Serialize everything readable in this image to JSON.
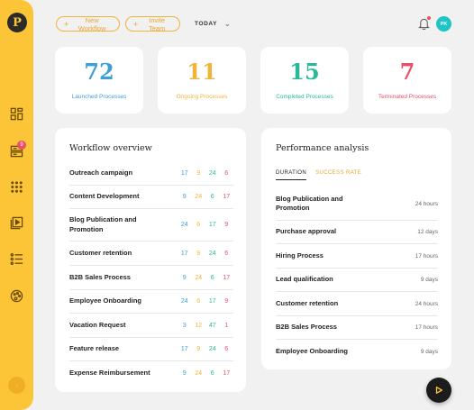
{
  "app": {
    "logo_letter": "P"
  },
  "sidebar": {
    "items": [
      {
        "name": "dashboard-icon"
      },
      {
        "name": "workflows-icon",
        "badge": "9"
      },
      {
        "name": "grid-apps-icon"
      },
      {
        "name": "media-icon"
      },
      {
        "name": "list-icon"
      },
      {
        "name": "palette-icon"
      }
    ],
    "collapse_icon": "chevron-right-icon"
  },
  "topbar": {
    "new_workflow": "New Workflow",
    "invite_team": "Invite Team",
    "date_filter": "TODAY",
    "avatar_initials": "PK"
  },
  "stats": [
    {
      "value": "72",
      "label": "Launched Processes",
      "color": "#3d9fd8"
    },
    {
      "value": "11",
      "label": "Ongoing Processes",
      "color": "#f0b43a"
    },
    {
      "value": "15",
      "label": "Completed Processes",
      "color": "#29b898"
    },
    {
      "value": "7",
      "label": "Terminated Processes",
      "color": "#e8506a"
    }
  ],
  "workflow_overview": {
    "title": "Workflow overview",
    "rows": [
      {
        "name": "Outreach campaign",
        "values": [
          "17",
          "9",
          "24",
          "6"
        ]
      },
      {
        "name": "Content Development",
        "values": [
          "9",
          "24",
          "6",
          "17"
        ]
      },
      {
        "name": "Blog Publication and Promotion",
        "values": [
          "24",
          "6",
          "17",
          "9"
        ]
      },
      {
        "name": "Customer retention",
        "values": [
          "17",
          "9",
          "24",
          "6"
        ]
      },
      {
        "name": "B2B Sales Process",
        "values": [
          "9",
          "24",
          "6",
          "17"
        ]
      },
      {
        "name": "Employee Onboarding",
        "values": [
          "24",
          "6",
          "17",
          "9"
        ]
      },
      {
        "name": "Vacation Request",
        "values": [
          "3",
          "12",
          "47",
          "1"
        ]
      },
      {
        "name": "Feature release",
        "values": [
          "17",
          "9",
          "24",
          "6"
        ]
      },
      {
        "name": "Expense Reimbursement",
        "values": [
          "9",
          "24",
          "6",
          "17"
        ]
      }
    ]
  },
  "performance_analysis": {
    "title": "Performance analysis",
    "tabs": [
      "DURATION",
      "SUCCESS RATE"
    ],
    "rows": [
      {
        "name": "Blog Publication and Promotion",
        "value": "24 hours"
      },
      {
        "name": "Purchase approval",
        "value": "12 days"
      },
      {
        "name": "Hiring Process",
        "value": "17 hours"
      },
      {
        "name": "Lead qualification",
        "value": "9 days"
      },
      {
        "name": "Customer retention",
        "value": "24 hours"
      },
      {
        "name": "B2B Sales Process",
        "value": "17 hours"
      },
      {
        "name": "Employee Onboarding",
        "value": "9 days"
      }
    ]
  }
}
